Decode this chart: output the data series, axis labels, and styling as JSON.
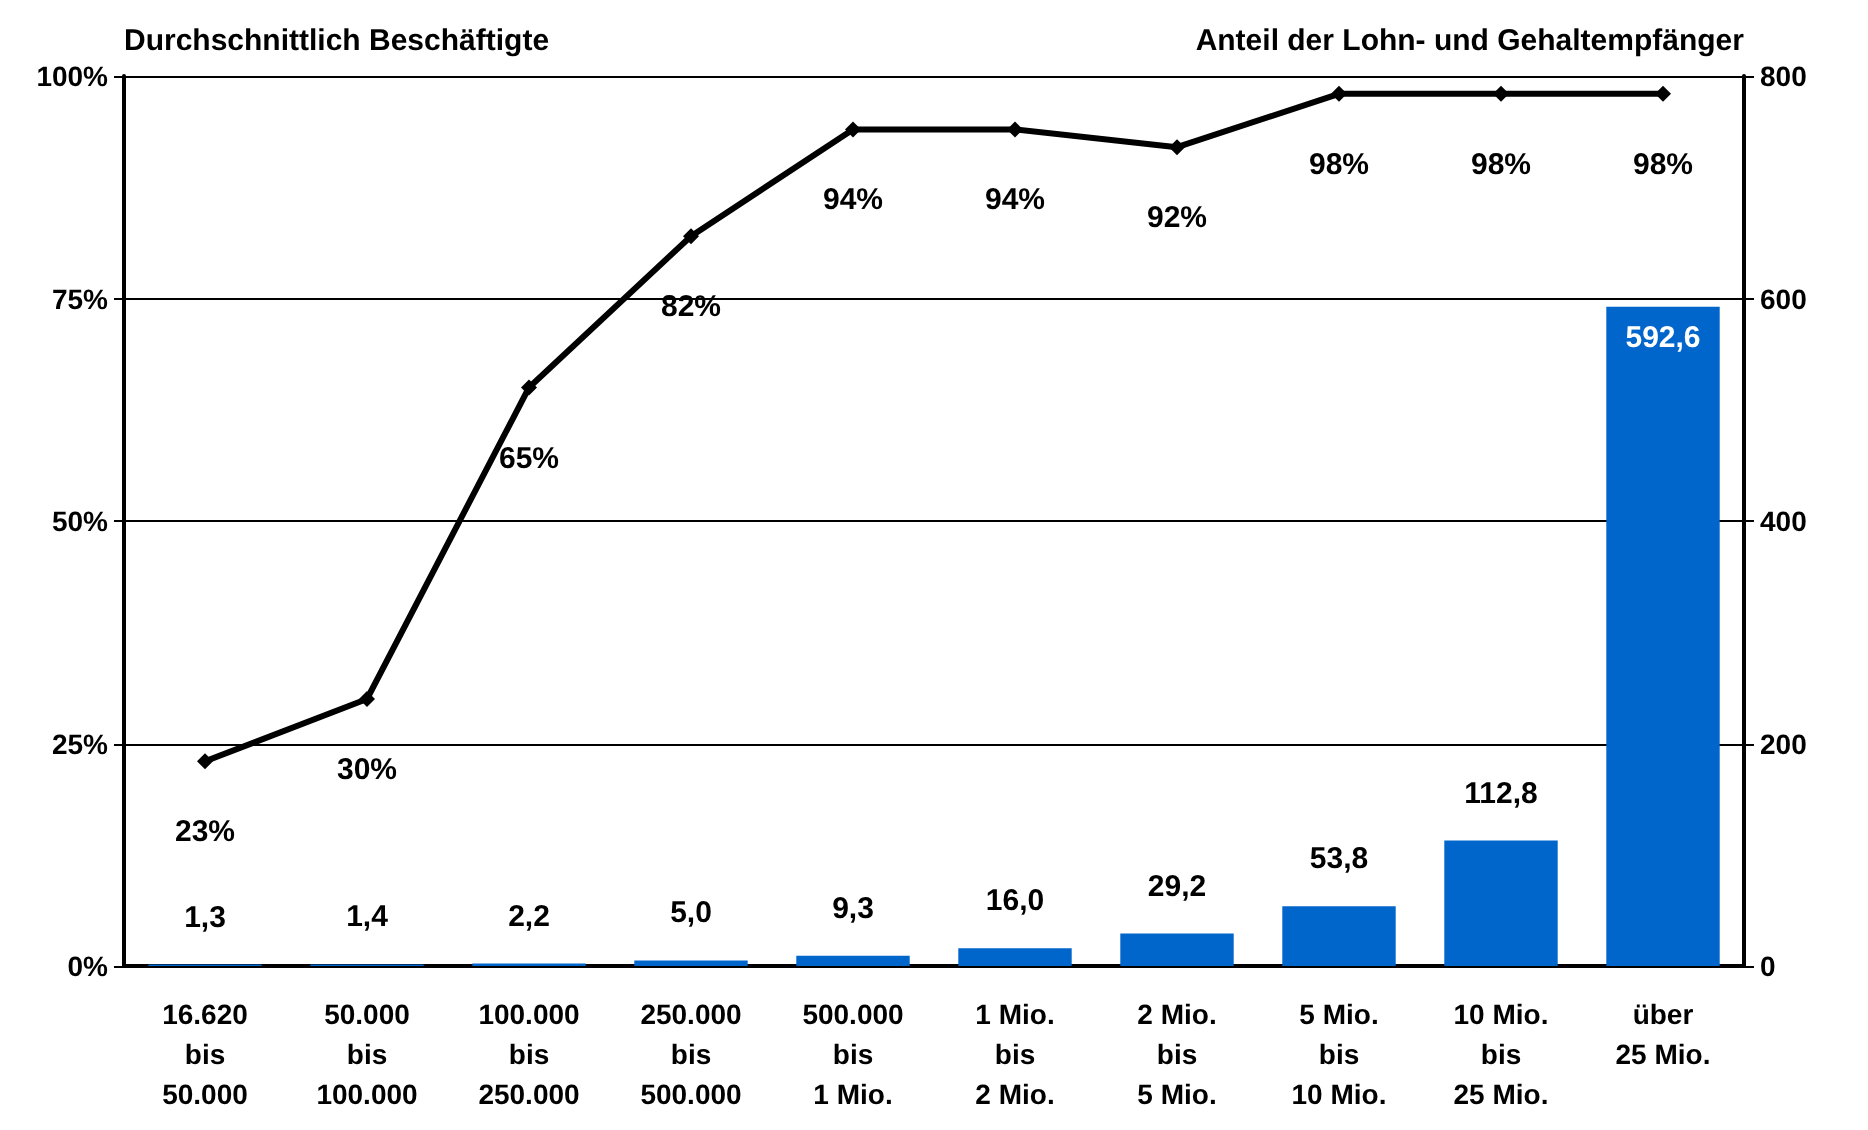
{
  "chart_data": {
    "type": "bar",
    "ylabel": "Durchschnittlich Beschäftigte",
    "y2label": "Anteil der Lohn- und Gehaltempfänger",
    "categories": [
      "16.620\nbis\n50.000",
      "50.000\nbis\n100.000",
      "100.000\nbis\n250.000",
      "250.000\nbis\n500.000",
      "500.000\nbis\n1 Mio.",
      "1 Mio.\nbis\n2 Mio.",
      "2 Mio.\nbis\n5 Mio.",
      "5 Mio.\nbis\n10 Mio.",
      "10 Mio.\nbis\n25 Mio.",
      "über\n25 Mio."
    ],
    "series": [
      {
        "axis": "y2",
        "color": "#0066cc",
        "values": [
          1.3,
          1.4,
          2.2,
          5.0,
          9.3,
          16.0,
          29.2,
          53.8,
          112.8,
          592.6
        ],
        "value_labels": [
          "1,3",
          "1,4",
          "2,2",
          "5,0",
          "9,3",
          "16,0",
          "29,2",
          "53,8",
          "112,8",
          "592,6"
        ]
      },
      {
        "type": "line",
        "axis": "y",
        "color": "#000000",
        "marker": "diamond",
        "values": [
          23,
          30,
          65,
          82,
          94,
          94,
          92,
          98,
          98,
          98
        ],
        "value_labels": [
          "23%",
          "30%",
          "65%",
          "82%",
          "94%",
          "94%",
          "92%",
          "98%",
          "98%",
          "98%"
        ]
      }
    ],
    "ylim": [
      0,
      100
    ],
    "yticks": [
      {
        "value": 0,
        "label": "0%"
      },
      {
        "value": 25,
        "label": "25%"
      },
      {
        "value": 50,
        "label": "50%"
      },
      {
        "value": 75,
        "label": "75%"
      },
      {
        "value": 100,
        "label": "100%"
      }
    ],
    "y2lim": [
      0,
      800
    ],
    "y2ticks": [
      0,
      200,
      400,
      600,
      800
    ],
    "grid": "y"
  }
}
